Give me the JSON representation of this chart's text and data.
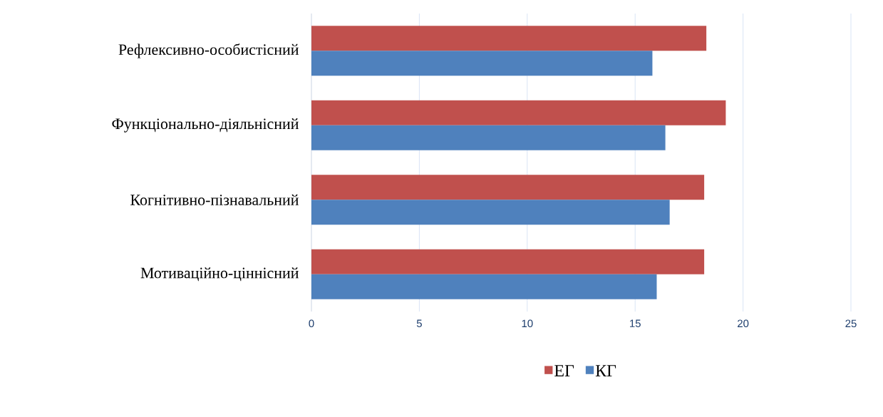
{
  "chart_data": {
    "type": "bar",
    "orientation": "horizontal",
    "categories": [
      "Рефлексивно-особистісний",
      "Функціонально-діяльнісний",
      "Когнітивно-пізнавальний",
      "Мотиваційно-ціннісний"
    ],
    "series": [
      {
        "name": "ЕГ",
        "color": "#c0504d",
        "values": [
          18.3,
          19.2,
          18.2,
          18.2
        ]
      },
      {
        "name": "КГ",
        "color": "#4f81bd",
        "values": [
          15.8,
          16.4,
          16.6,
          16.0
        ]
      }
    ],
    "xlim": [
      0,
      25
    ],
    "xticks": [
      0,
      5,
      10,
      15,
      20,
      25
    ],
    "grid": "x",
    "legend": "bottom"
  }
}
